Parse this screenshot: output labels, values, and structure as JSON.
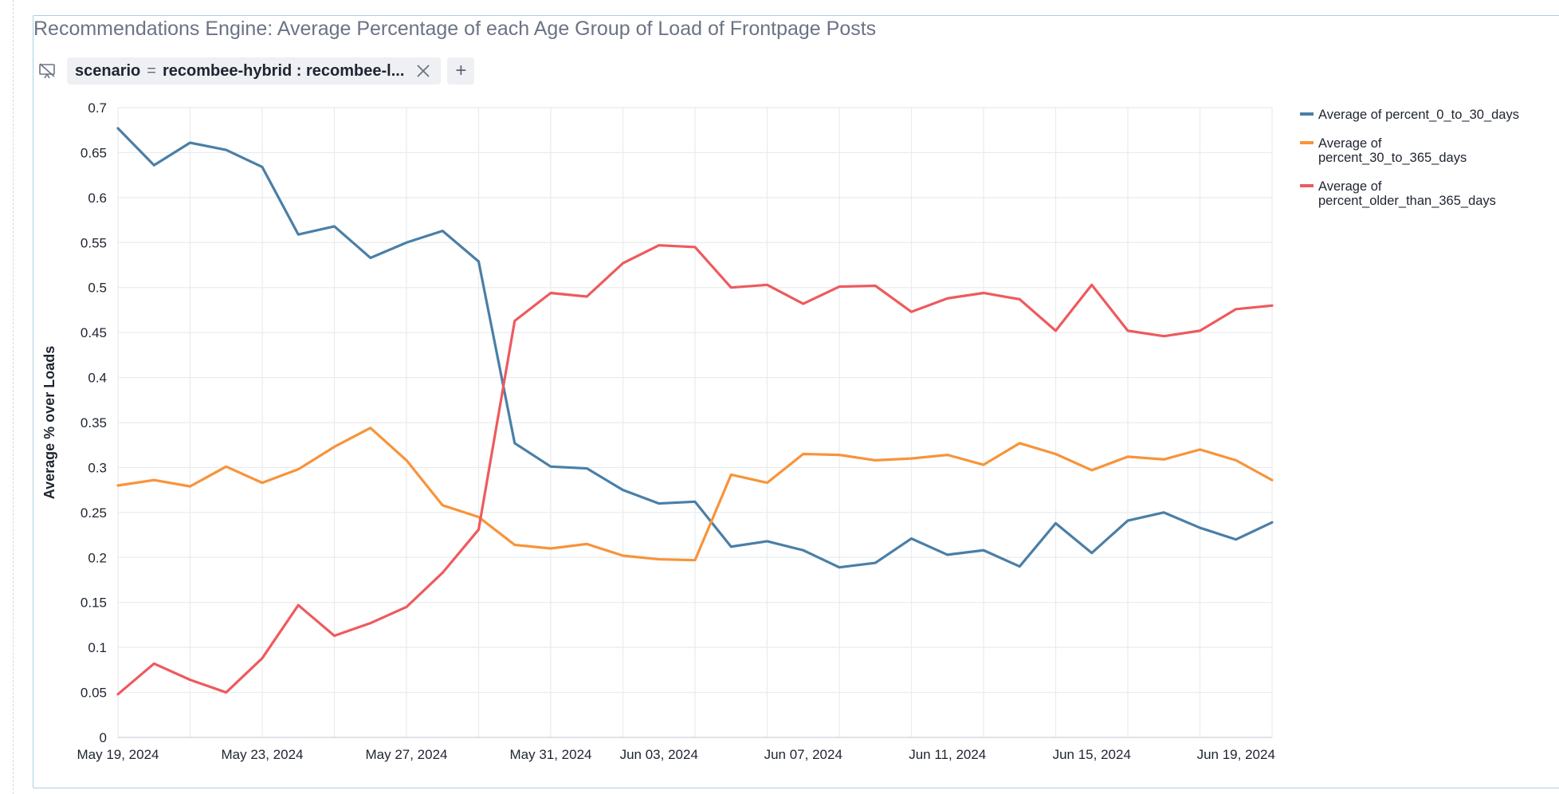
{
  "title": "Recommendations Engine: Average Percentage of each Age Group of Load of Frontpage Posts",
  "filter": {
    "field": "scenario",
    "operator": "=",
    "value": "recombee-hybrid : recombee-l...",
    "add_label": "+"
  },
  "icons": {
    "present": "presentation-off-icon",
    "close": "close-icon"
  },
  "colors": {
    "blue": "#4a7fa7",
    "orange": "#f7943a",
    "red": "#ee5a5d"
  },
  "chart_data": {
    "type": "line",
    "title": "Recommendations Engine: Average Percentage of each Age Group of Load of Frontpage Posts",
    "xlabel": "",
    "ylabel": "Average % over Loads",
    "ylim": [
      0,
      0.7
    ],
    "yticks": [
      "0",
      "0.05",
      "0.1",
      "0.15",
      "0.2",
      "0.25",
      "0.3",
      "0.35",
      "0.4",
      "0.45",
      "0.5",
      "0.55",
      "0.6",
      "0.65",
      "0.7"
    ],
    "xtick_labels": [
      {
        "day": 0,
        "label": "May 19, 2024"
      },
      {
        "day": 4,
        "label": "May 23, 2024"
      },
      {
        "day": 8,
        "label": "May 27, 2024"
      },
      {
        "day": 12,
        "label": "May 31, 2024"
      },
      {
        "day": 15,
        "label": "Jun 03, 2024"
      },
      {
        "day": 19,
        "label": "Jun 07, 2024"
      },
      {
        "day": 23,
        "label": "Jun 11, 2024"
      },
      {
        "day": 27,
        "label": "Jun 15, 2024"
      },
      {
        "day": 31,
        "label": "Jun 19, 2024"
      }
    ],
    "x_range_days": 32,
    "x": [
      "2024-05-19",
      "2024-05-20",
      "2024-05-21",
      "2024-05-22",
      "2024-05-23",
      "2024-05-24",
      "2024-05-25",
      "2024-05-26",
      "2024-05-27",
      "2024-05-28",
      "2024-05-29",
      "2024-05-30",
      "2024-05-31",
      "2024-06-01",
      "2024-06-02",
      "2024-06-03",
      "2024-06-04",
      "2024-06-05",
      "2024-06-06",
      "2024-06-07",
      "2024-06-08",
      "2024-06-09",
      "2024-06-10",
      "2024-06-11",
      "2024-06-12",
      "2024-06-13",
      "2024-06-14",
      "2024-06-15",
      "2024-06-16",
      "2024-06-17",
      "2024-06-18",
      "2024-06-19",
      "2024-06-20"
    ],
    "legend_position": "right",
    "series": [
      {
        "name": "Average of percent_0_to_30_days",
        "legend_lines": [
          "Average of percent_0_to_30_days"
        ],
        "color": "#4a7fa7",
        "values": [
          0.677,
          0.636,
          0.661,
          0.653,
          0.634,
          0.559,
          0.568,
          0.533,
          0.55,
          0.563,
          0.529,
          0.327,
          0.301,
          0.299,
          0.275,
          0.26,
          0.262,
          0.212,
          0.218,
          0.208,
          0.189,
          0.194,
          0.221,
          0.203,
          0.208,
          0.19,
          0.238,
          0.205,
          0.241,
          0.25,
          0.233,
          0.22,
          0.239
        ]
      },
      {
        "name": "Average of percent_30_to_365_days",
        "legend_lines": [
          "Average of",
          "percent_30_to_365_days"
        ],
        "color": "#f7943a",
        "values": [
          0.28,
          0.286,
          0.279,
          0.301,
          0.283,
          0.298,
          0.323,
          0.344,
          0.308,
          0.258,
          0.245,
          0.214,
          0.21,
          0.215,
          0.202,
          0.198,
          0.197,
          0.292,
          0.283,
          0.315,
          0.314,
          0.308,
          0.31,
          0.314,
          0.303,
          0.327,
          0.315,
          0.297,
          0.312,
          0.309,
          0.32,
          0.308,
          0.286
        ]
      },
      {
        "name": "Average of percent_older_than_365_days",
        "legend_lines": [
          "Average of",
          "percent_older_than_365_days"
        ],
        "color": "#ee5a5d",
        "values": [
          0.048,
          0.082,
          0.064,
          0.05,
          0.088,
          0.147,
          0.113,
          0.127,
          0.145,
          0.183,
          0.231,
          0.463,
          0.494,
          0.49,
          0.527,
          0.547,
          0.545,
          0.5,
          0.503,
          0.482,
          0.501,
          0.502,
          0.473,
          0.488,
          0.494,
          0.487,
          0.452,
          0.503,
          0.452,
          0.446,
          0.452,
          0.476,
          0.48
        ]
      }
    ]
  }
}
